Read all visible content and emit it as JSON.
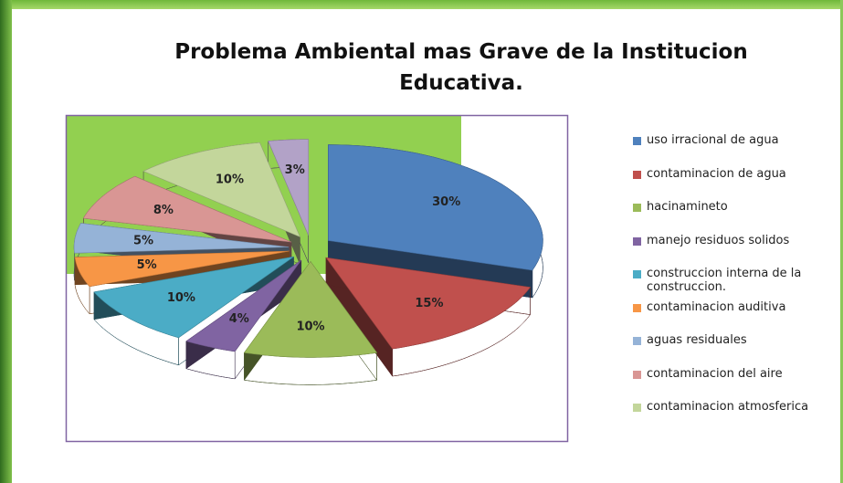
{
  "chart_data": {
    "type": "pie",
    "title": "Problema Ambiental mas Grave de la Institucion Educativa.",
    "categories": [
      "uso irracional de agua",
      "contaminacion de agua",
      "hacinamineto",
      "manejo residuos solidos",
      "construccion interna de la construccion.",
      "contaminacion auditiva",
      "aguas residuales",
      "contaminacion del aire",
      "contaminacion atmosferica",
      null
    ],
    "values": [
      30,
      15,
      10,
      4,
      10,
      5,
      5,
      8,
      10,
      3
    ],
    "value_labels": [
      "30%",
      "15%",
      "10%",
      "4%",
      "10%",
      "5%",
      "5%",
      "8%",
      "10%",
      "3%"
    ],
    "colors": [
      "#4f81bd",
      "#c0504d",
      "#9bbb59",
      "#8064a2",
      "#4bacc6",
      "#f79646",
      "#95b3d7",
      "#d99694",
      "#c3d69b",
      "#b2a2c7"
    ],
    "legend": "right"
  }
}
